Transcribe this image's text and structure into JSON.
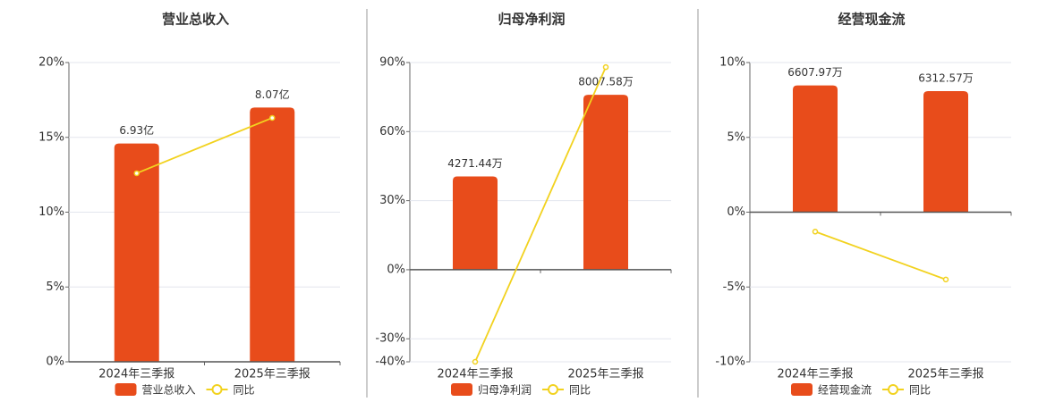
{
  "chart_data": [
    {
      "type": "bar",
      "title": "营业总收入",
      "categories": [
        "2024年三季报",
        "2025年三季报"
      ],
      "series": [
        {
          "name": "营业总收入",
          "color": "#e84c1b",
          "type": "bar",
          "axis": "y2",
          "values": [
            6.93,
            8.07
          ],
          "value_labels": [
            "6.93亿",
            "8.07亿"
          ]
        },
        {
          "name": "同比",
          "color": "#f2d21f",
          "type": "line",
          "values": [
            12.6,
            16.3
          ]
        }
      ],
      "ylim": [
        0,
        20
      ],
      "yticks": [
        {
          "value": 0,
          "label": "0%"
        },
        {
          "value": 5,
          "label": "5%"
        },
        {
          "value": 10,
          "label": "10%"
        },
        {
          "value": 15,
          "label": "15%"
        },
        {
          "value": 20,
          "label": "20%"
        }
      ],
      "y2lim": [
        0,
        9.5
      ],
      "grid": true,
      "legend": "bottom"
    },
    {
      "type": "bar",
      "title": "归母净利润",
      "categories": [
        "2024年三季报",
        "2025年三季报"
      ],
      "series": [
        {
          "name": "归母净利润",
          "color": "#e84c1b",
          "type": "bar",
          "axis": "y2",
          "values": [
            4271.44,
            8007.58
          ],
          "value_labels": [
            "4271.44万",
            "8007.58万"
          ]
        },
        {
          "name": "同比",
          "color": "#f2d21f",
          "type": "line",
          "values": [
            -40,
            88
          ]
        }
      ],
      "ylim": [
        -40,
        90
      ],
      "yticks": [
        {
          "value": -40,
          "label": "-40%"
        },
        {
          "value": -30,
          "label": "-30%"
        },
        {
          "value": 0,
          "label": "0%"
        },
        {
          "value": 30,
          "label": "30%"
        },
        {
          "value": 60,
          "label": "60%"
        },
        {
          "value": 90,
          "label": "90%"
        }
      ],
      "y2lim": [
        -4216,
        9486
      ],
      "grid": true,
      "legend": "bottom"
    },
    {
      "type": "bar",
      "title": "经营现金流",
      "categories": [
        "2024年三季报",
        "2025年三季报"
      ],
      "series": [
        {
          "name": "经营现金流",
          "color": "#e84c1b",
          "type": "bar",
          "axis": "y2",
          "values": [
            6607.97,
            6312.57
          ],
          "value_labels": [
            "6607.97万",
            "6312.57万"
          ]
        },
        {
          "name": "同比",
          "color": "#f2d21f",
          "type": "line",
          "values": [
            -1.3,
            -4.5
          ]
        }
      ],
      "ylim": [
        -10,
        10
      ],
      "yticks": [
        {
          "value": -10,
          "label": "-10%"
        },
        {
          "value": -5,
          "label": "-5%"
        },
        {
          "value": 0,
          "label": "0%"
        },
        {
          "value": 5,
          "label": "5%"
        },
        {
          "value": 10,
          "label": "10%"
        }
      ],
      "y2lim": [
        -7800,
        7800
      ],
      "grid": true,
      "legend": "bottom"
    }
  ]
}
